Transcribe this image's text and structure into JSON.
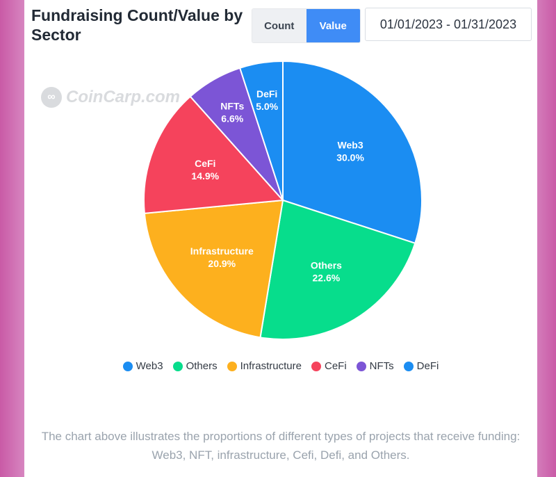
{
  "header": {
    "title": "Fundraising Count/Value by Sector",
    "toggle": {
      "count_label": "Count",
      "value_label": "Value",
      "selected": "Value"
    },
    "date_range": "01/01/2023 - 01/31/2023"
  },
  "watermark": {
    "text": "CoinCarp.com"
  },
  "chart_data": {
    "type": "pie",
    "categories": [
      "Web3",
      "Others",
      "Infrastructure",
      "CeFi",
      "NFTs",
      "DeFi"
    ],
    "values": [
      30.0,
      22.6,
      20.9,
      14.9,
      6.6,
      5.0
    ],
    "labels": [
      "30.0%",
      "22.6%",
      "20.9%",
      "14.9%",
      "6.6%",
      "5.0%"
    ],
    "colors": [
      "#1b8df2",
      "#07dd8c",
      "#fdb01e",
      "#f5435c",
      "#7c55d6",
      "#1b8df2"
    ],
    "legend": [
      "Web3",
      "Others",
      "Infrastructure",
      "CeFi",
      "NFTs",
      "DeFi"
    ],
    "legend_placement": "bottom"
  },
  "caption": "The chart above illustrates the proportions of different types of projects that receive funding: Web3, NFT, infrastructure, Cefi, Defi, and Others."
}
